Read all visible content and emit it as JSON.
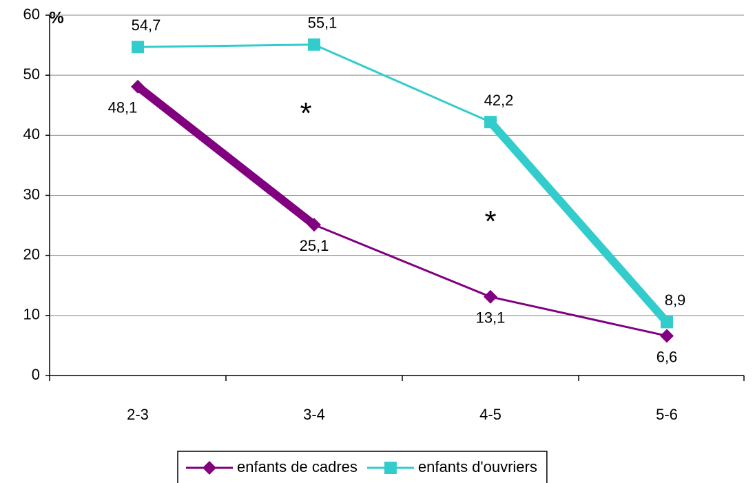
{
  "chart_data": {
    "type": "line",
    "unit_label": "%",
    "categories": [
      "2-3",
      "3-4",
      "4-5",
      "5-6"
    ],
    "series": [
      {
        "name": "enfants de cadres",
        "color": "#800080",
        "marker": "diamond",
        "label_position": "below",
        "values": [
          48.1,
          25.1,
          13.1,
          6.6
        ],
        "value_labels": [
          "48,1",
          "25,1",
          "13,1",
          "6,6"
        ],
        "emphasis_segments": [
          0
        ]
      },
      {
        "name": "enfants d'ouvriers",
        "color": "#33cccc",
        "marker": "square",
        "label_position": "above",
        "values": [
          54.7,
          55.1,
          42.2,
          8.9
        ],
        "value_labels": [
          "54,7",
          "55,1",
          "42,2",
          "8,9"
        ],
        "emphasis_segments": [
          2
        ]
      }
    ],
    "annotations": [
      {
        "text": "*",
        "category": 1,
        "value": 44
      },
      {
        "text": "*",
        "category": 2,
        "value": 26
      }
    ],
    "ylim": [
      0,
      60
    ],
    "yticks": [
      0,
      10,
      20,
      30,
      40,
      50,
      60
    ],
    "grid": true,
    "legend": "bottom"
  }
}
